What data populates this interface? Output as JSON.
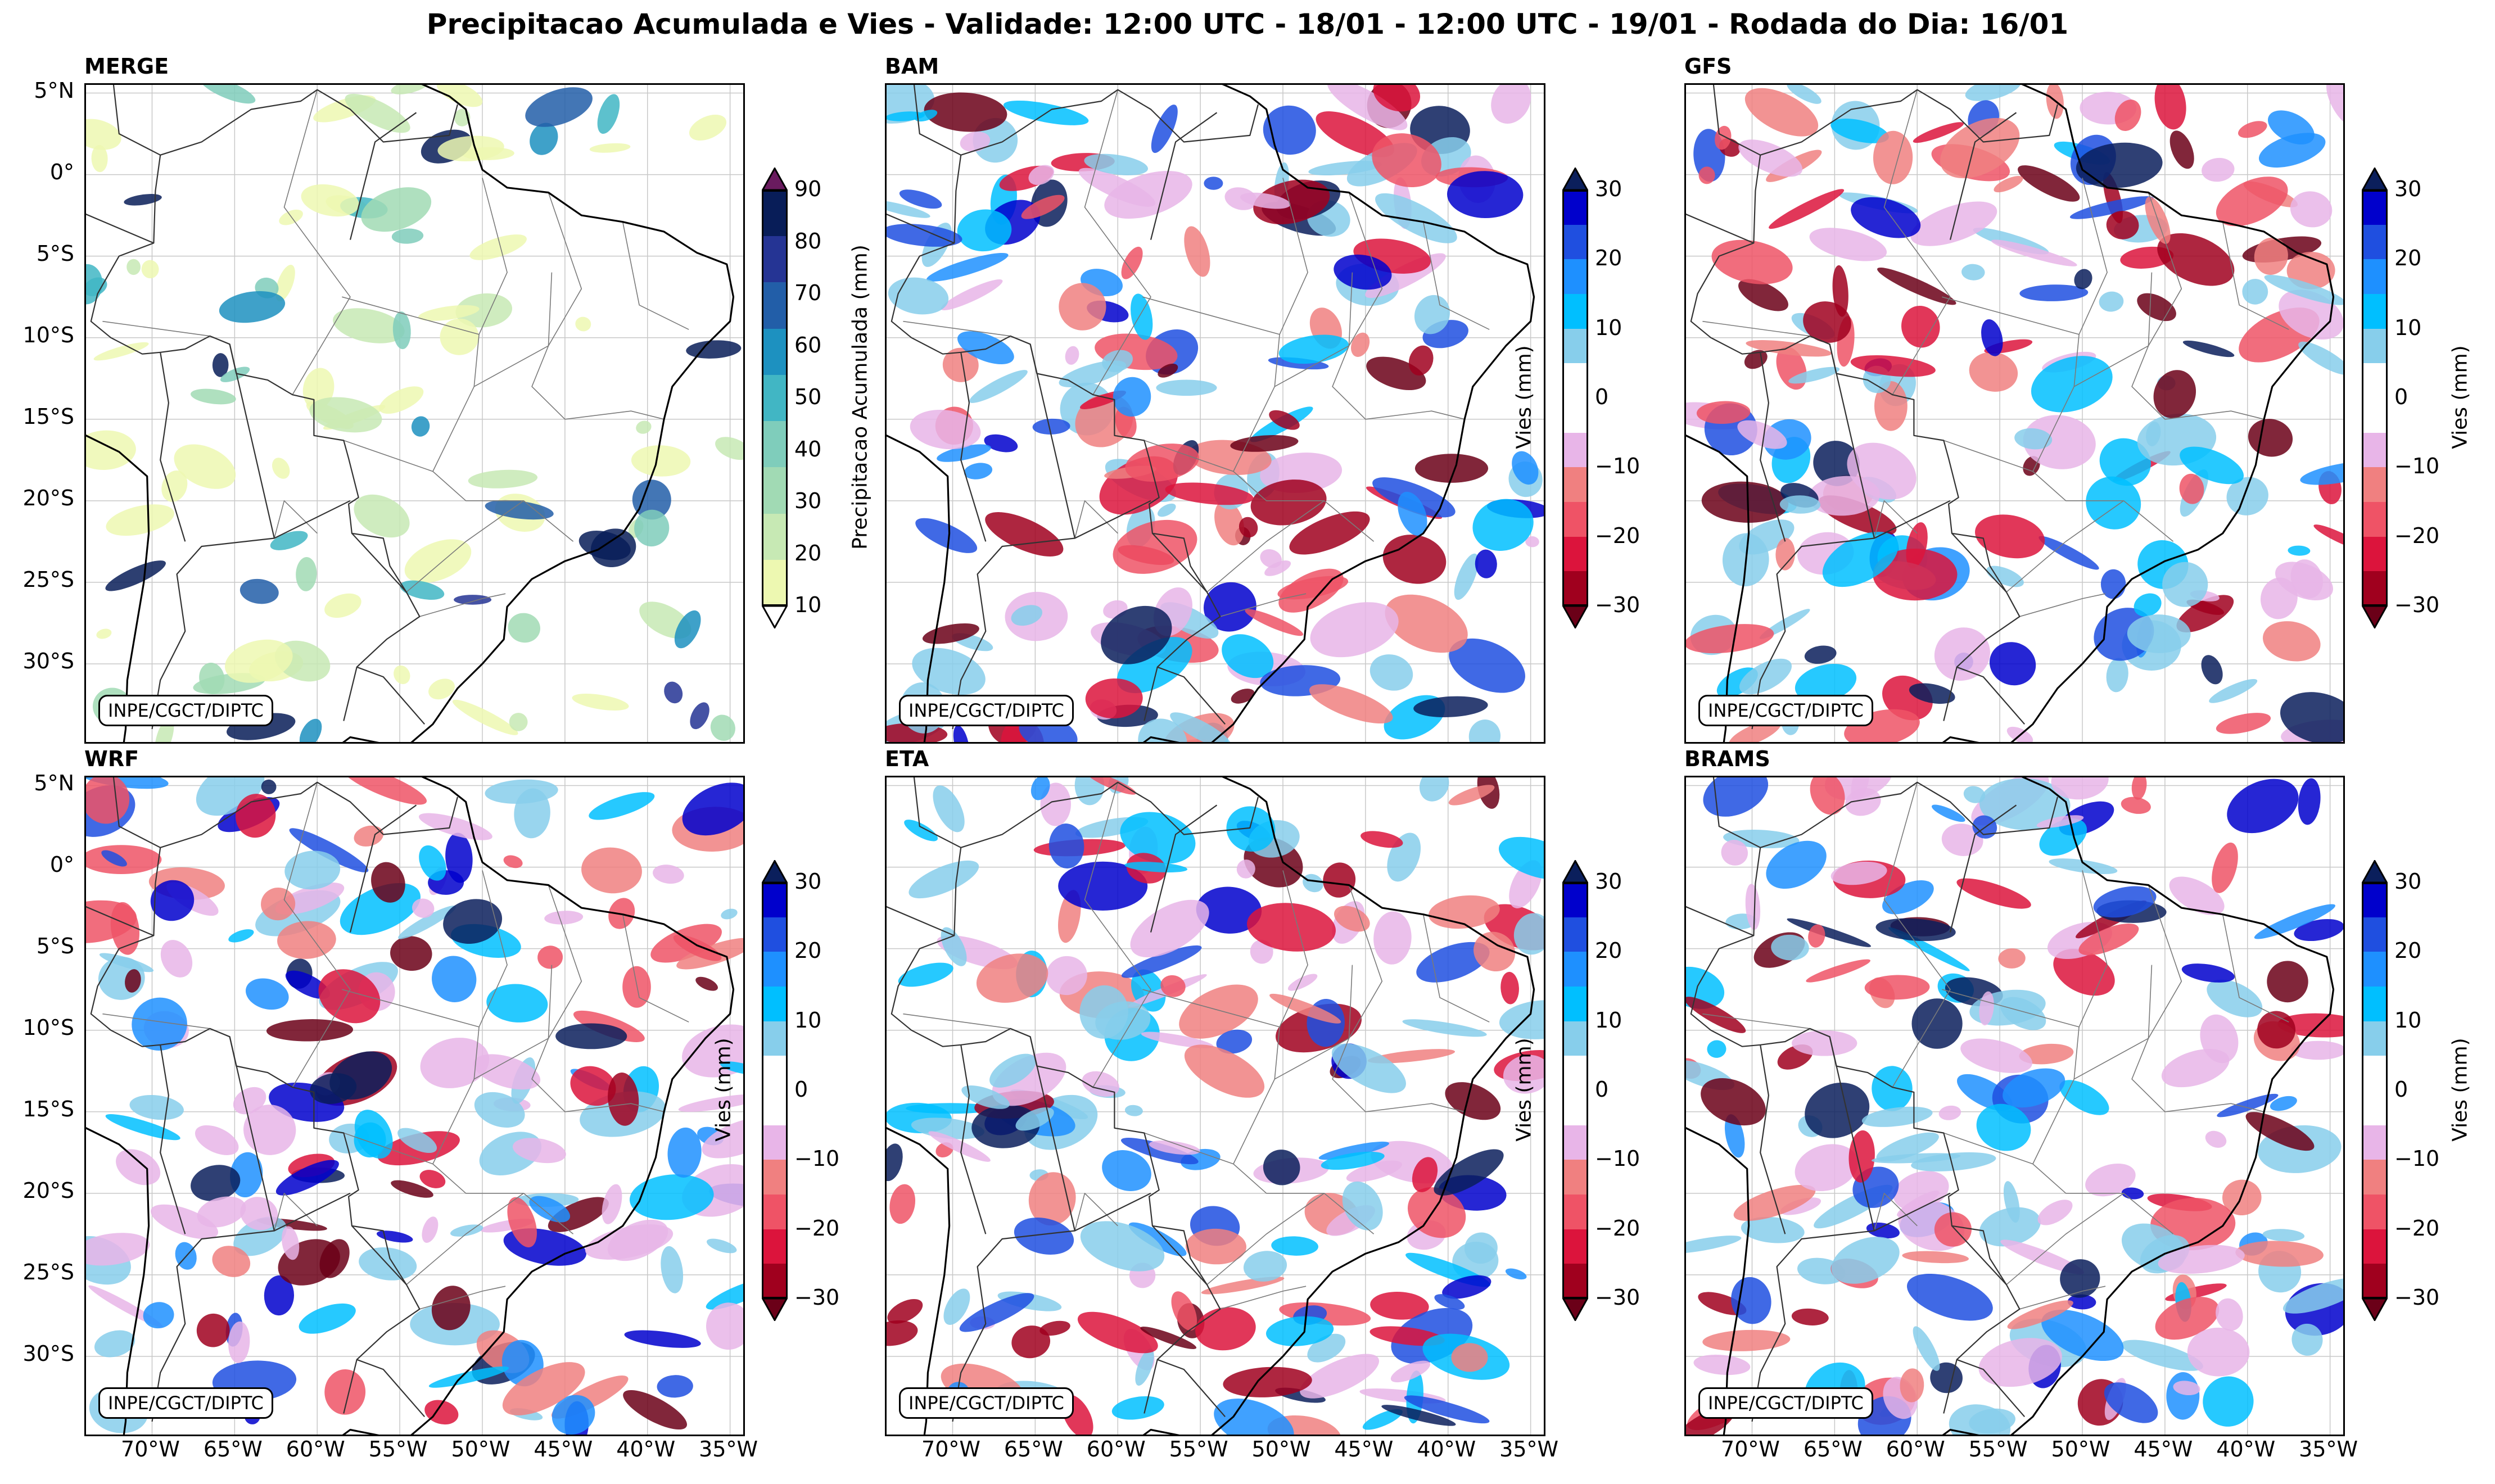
{
  "title": "Precipitacao Acumulada e Vies - Validade: 12:00 UTC - 18/01 - 12:00 UTC - 19/01 - Rodada do Dia: 16/01",
  "credit": "INPE/CGCT/DIPTC",
  "panels": [
    {
      "name": "MERGE"
    },
    {
      "name": "BAM"
    },
    {
      "name": "GFS"
    },
    {
      "name": "WRF"
    },
    {
      "name": "ETA"
    },
    {
      "name": "BRAMS"
    }
  ],
  "axes": {
    "lat_labels": [
      "5°N",
      "0°",
      "5°S",
      "10°S",
      "15°S",
      "20°S",
      "25°S",
      "30°S"
    ],
    "lon_labels": [
      "70°W",
      "65°W",
      "60°W",
      "55°W",
      "50°W",
      "45°W",
      "40°W",
      "35°W"
    ],
    "lat_values": [
      5,
      0,
      -5,
      -10,
      -15,
      -20,
      -25,
      -30
    ],
    "lon_values": [
      -70,
      -65,
      -60,
      -55,
      -50,
      -45,
      -40,
      -35
    ],
    "lat_range": [
      -35,
      5.5
    ],
    "lon_range": [
      -74,
      -34
    ]
  },
  "colorbar_precip": {
    "label": "Precipitacao Acumulada (mm)",
    "ticks": [
      "10",
      "20",
      "30",
      "40",
      "50",
      "60",
      "70",
      "80",
      "90"
    ],
    "colors": [
      "#edf8b1",
      "#c7e9b4",
      "#a1dab4",
      "#7fcdbb",
      "#41b6c4",
      "#1d91c0",
      "#225ea8",
      "#253494",
      "#081d58"
    ],
    "over_color": "#6a1b5f",
    "under_color": "#ffffff"
  },
  "colorbar_bias": {
    "label": "Vies (mm)",
    "ticks": [
      "30",
      "20",
      "10",
      "0",
      "−10",
      "−20",
      "−30"
    ],
    "colors_top_to_bottom": [
      "#0000cc",
      "#1f4fe0",
      "#1e90ff",
      "#00bfff",
      "#87ceeb",
      "#ffffff",
      "#ffffff",
      "#e8b5e8",
      "#f08080",
      "#ef5366",
      "#dc143c",
      "#a0001e"
    ],
    "over_color": "#0b1f5c",
    "under_color": "#6b0018"
  }
}
